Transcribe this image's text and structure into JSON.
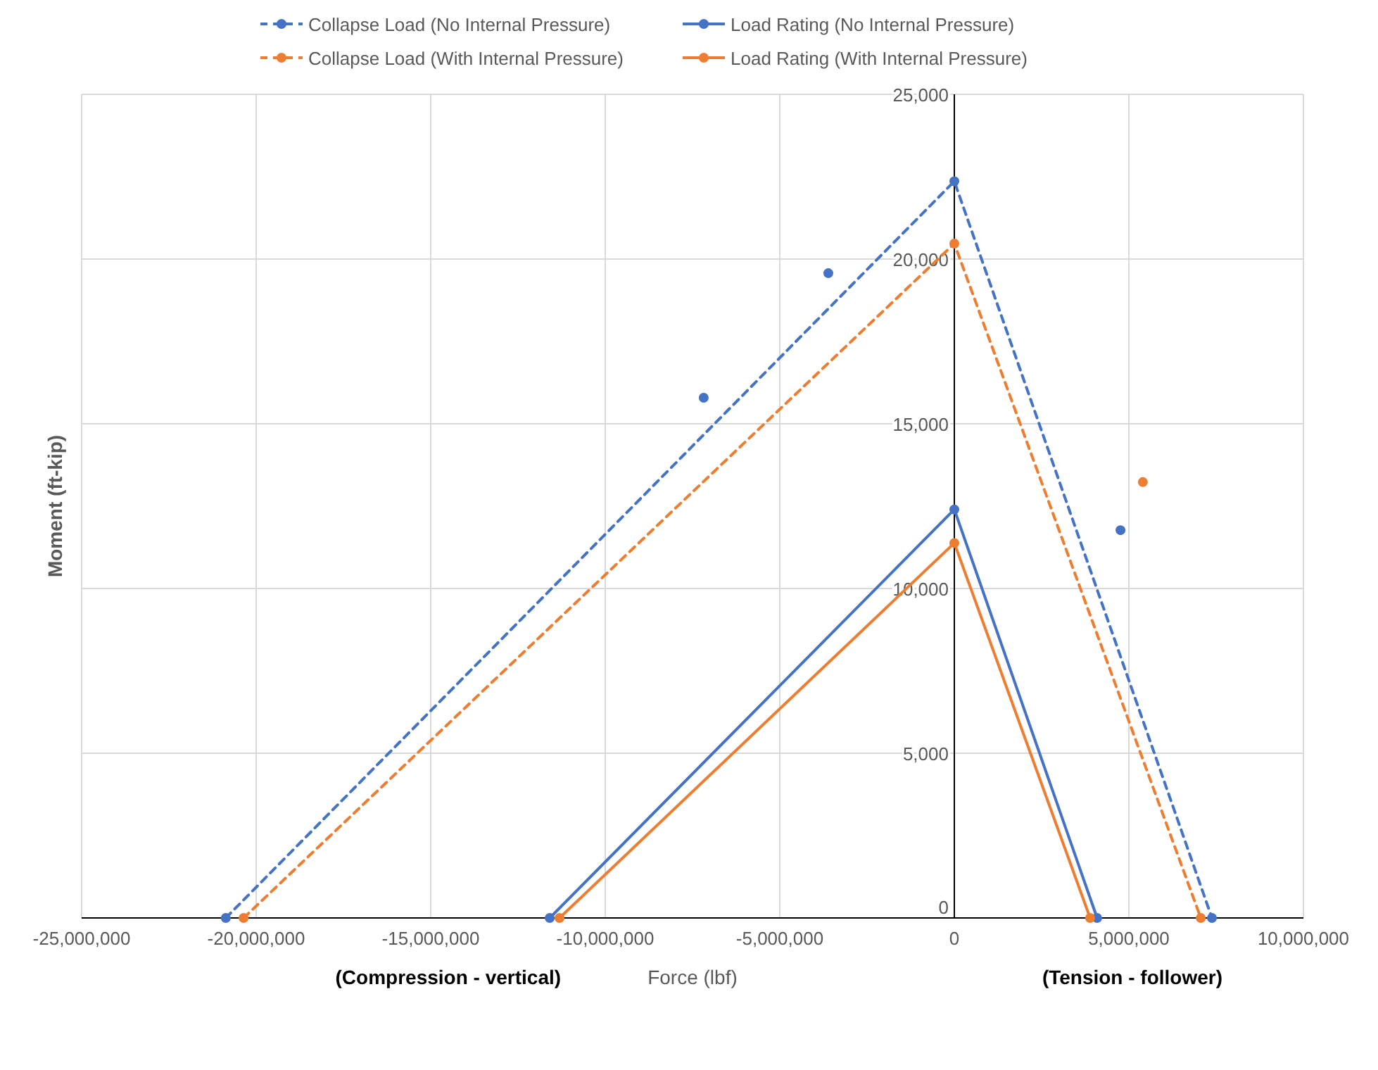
{
  "chart_data": {
    "type": "line",
    "xlabel": "Force (lbf)",
    "ylabel": "Moment (ft-kip)",
    "annotations": [
      "(Compression - vertical)",
      "(Tension - follower)"
    ],
    "xlim": [
      -25000000,
      10000000
    ],
    "xticks": [
      {
        "value": -25000000,
        "label": "-25,000,000"
      },
      {
        "value": -20000000,
        "label": "-20,000,000"
      },
      {
        "value": -15000000,
        "label": "-15,000,000"
      },
      {
        "value": -10000000,
        "label": "-10,000,000"
      },
      {
        "value": -5000000,
        "label": "-5,000,000"
      },
      0,
      {
        "value": 5000000,
        "label": "5,000,000"
      },
      {
        "value": 10000000,
        "label": "10,000,000"
      }
    ],
    "ylim": [
      0,
      25000
    ],
    "yticks": [
      0,
      {
        "value": 5000,
        "label": "5,000"
      },
      {
        "value": 10000,
        "label": "10,000"
      },
      {
        "value": 15000,
        "label": "15,000"
      },
      {
        "value": 20000,
        "label": "20,000"
      },
      {
        "value": 25000,
        "label": "25,000"
      }
    ],
    "grid": true,
    "legend": "top",
    "marker": "circle",
    "series": [
      {
        "name": "Collapse Load (No Internal Pressure)",
        "color": "#4472c4",
        "line_style": "dashed",
        "x": [
          -20870000,
          0,
          7380000
        ],
        "values": [
          0,
          22360,
          0
        ]
      },
      {
        "name": "Collapse Load (With Internal Pressure)",
        "color": "#ed7d31",
        "line_style": "dashed",
        "x": [
          -20360000,
          0,
          7060000
        ],
        "values": [
          0,
          20470,
          0
        ]
      },
      {
        "name": "Load Rating (No Internal Pressure)",
        "color": "#4472c4",
        "line_style": "solid",
        "x": [
          -11590000,
          0,
          4090000
        ],
        "values": [
          0,
          12400,
          0
        ]
      },
      {
        "name": "Load Rating (With Internal Pressure)",
        "color": "#ed7d31",
        "line_style": "solid",
        "x": [
          -11310000,
          0,
          3890000
        ],
        "values": [
          0,
          11380,
          0
        ]
      },
      {
        "type": "scatter",
        "color": "#4472c4",
        "x": [
          -3610000,
          -7180000,
          4760000
        ],
        "values": [
          19570,
          15790,
          11770
        ]
      },
      {
        "type": "scatter",
        "color": "#ed7d31",
        "x": [
          5400000
        ],
        "values": [
          13230
        ]
      }
    ]
  }
}
